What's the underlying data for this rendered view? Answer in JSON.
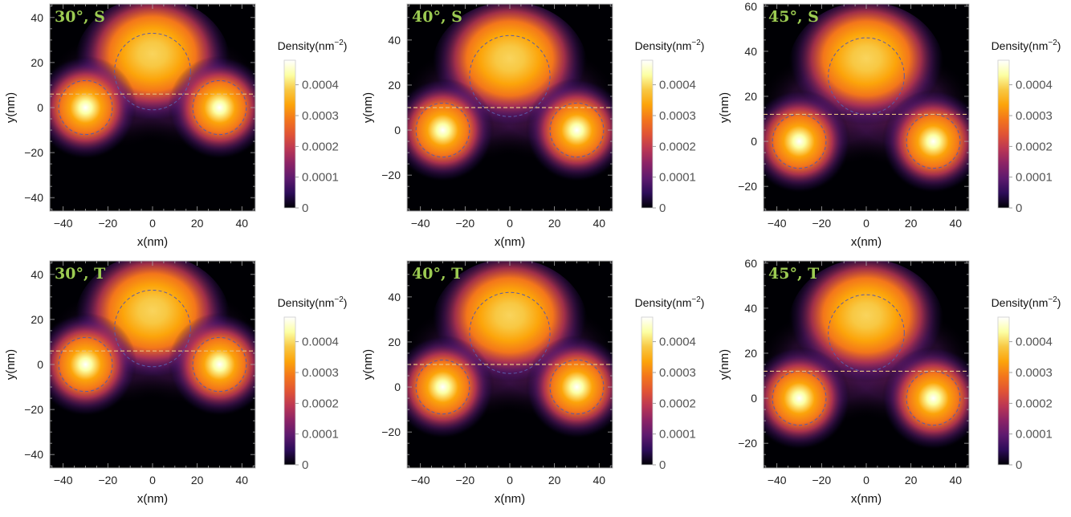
{
  "chart_data": [
    {
      "type": "heatmap",
      "label": "30°, S",
      "angle": 30,
      "xlabel": "x(nm)",
      "ylabel": "y(nm)",
      "xlim": [
        -46,
        46
      ],
      "ylim": [
        -46,
        46
      ],
      "xticks": [
        -40,
        -20,
        0,
        20,
        40
      ],
      "yticks": [
        -40,
        -20,
        0,
        20,
        40
      ],
      "dots": [
        {
          "x": -30,
          "y": 0,
          "r": 12
        },
        {
          "x": 30,
          "y": 0,
          "r": 12
        },
        {
          "x": 0,
          "y": 16,
          "r": 17
        }
      ],
      "hline_y": 6,
      "colorbar": {
        "title": "Density(nm",
        "exp": "−2",
        "close": ")",
        "ticks": [
          0,
          0.0001,
          0.0002,
          0.0003,
          0.0004
        ],
        "tick_labels": [
          "0",
          "0.0001",
          "0.0002",
          "0.0003",
          "0.0004"
        ],
        "max": 0.00048
      }
    },
    {
      "type": "heatmap",
      "label": "40°, S",
      "angle": 40,
      "xlabel": "x(nm)",
      "ylabel": "y(nm)",
      "xlim": [
        -46,
        46
      ],
      "ylim": [
        -36,
        56
      ],
      "xticks": [
        -40,
        -20,
        0,
        20,
        40
      ],
      "yticks": [
        -20,
        0,
        20,
        40
      ],
      "dots": [
        {
          "x": -30,
          "y": 0,
          "r": 12
        },
        {
          "x": 30,
          "y": 0,
          "r": 12
        },
        {
          "x": 0,
          "y": 24,
          "r": 18
        }
      ],
      "hline_y": 10,
      "colorbar": {
        "title": "Density(nm",
        "exp": "−2",
        "close": ")",
        "ticks": [
          0,
          0.0001,
          0.0002,
          0.0003,
          0.0004
        ],
        "tick_labels": [
          "0",
          "0.0001",
          "0.0002",
          "0.0003",
          "0.0004"
        ],
        "max": 0.00048
      }
    },
    {
      "type": "heatmap",
      "label": "45°, S",
      "angle": 45,
      "xlabel": "x(nm)",
      "ylabel": "y(nm)",
      "xlim": [
        -46,
        46
      ],
      "ylim": [
        -31,
        61
      ],
      "xticks": [
        -40,
        -20,
        0,
        20,
        40
      ],
      "yticks": [
        -20,
        0,
        20,
        40,
        60
      ],
      "dots": [
        {
          "x": -30,
          "y": 0,
          "r": 12
        },
        {
          "x": 30,
          "y": 0,
          "r": 12
        },
        {
          "x": 0,
          "y": 29,
          "r": 17
        }
      ],
      "hline_y": 12,
      "colorbar": {
        "title": "Density(nm",
        "exp": "−2",
        "close": ")",
        "ticks": [
          0,
          0.0001,
          0.0002,
          0.0003,
          0.0004
        ],
        "tick_labels": [
          "0",
          "0.0001",
          "0.0002",
          "0.0003",
          "0.0004"
        ],
        "max": 0.00048
      }
    },
    {
      "type": "heatmap",
      "label": "30°, T",
      "angle": 30,
      "xlabel": "x(nm)",
      "ylabel": "y(nm)",
      "xlim": [
        -46,
        46
      ],
      "ylim": [
        -46,
        46
      ],
      "xticks": [
        -40,
        -20,
        0,
        20,
        40
      ],
      "yticks": [
        -40,
        -20,
        0,
        20,
        40
      ],
      "dots": [
        {
          "x": -30,
          "y": 0,
          "r": 12
        },
        {
          "x": 30,
          "y": 0,
          "r": 12
        },
        {
          "x": 0,
          "y": 16,
          "r": 17
        }
      ],
      "hline_y": 6,
      "colorbar": {
        "title": "Density(nm",
        "exp": "−2",
        "close": ")",
        "ticks": [
          0,
          0.0001,
          0.0002,
          0.0003,
          0.0004
        ],
        "tick_labels": [
          "0",
          "0.0001",
          "0.0002",
          "0.0003",
          "0.0004"
        ],
        "max": 0.00048
      }
    },
    {
      "type": "heatmap",
      "label": "40°, T",
      "angle": 40,
      "xlabel": "x(nm)",
      "ylabel": "y(nm)",
      "xlim": [
        -46,
        46
      ],
      "ylim": [
        -36,
        56
      ],
      "xticks": [
        -40,
        -20,
        0,
        20,
        40
      ],
      "yticks": [
        -20,
        0,
        20,
        40
      ],
      "dots": [
        {
          "x": -30,
          "y": 0,
          "r": 12
        },
        {
          "x": 30,
          "y": 0,
          "r": 12
        },
        {
          "x": 0,
          "y": 24,
          "r": 18
        }
      ],
      "hline_y": 10,
      "colorbar": {
        "title": "Density(nm",
        "exp": "−2",
        "close": ")",
        "ticks": [
          0,
          0.0001,
          0.0002,
          0.0003,
          0.0004
        ],
        "tick_labels": [
          "0",
          "0.0001",
          "0.0002",
          "0.0003",
          "0.0004"
        ],
        "max": 0.00048
      }
    },
    {
      "type": "heatmap",
      "label": "45°, T",
      "angle": 45,
      "xlabel": "x(nm)",
      "ylabel": "y(nm)",
      "xlim": [
        -46,
        46
      ],
      "ylim": [
        -31,
        61
      ],
      "xticks": [
        -40,
        -20,
        0,
        20,
        40
      ],
      "yticks": [
        -20,
        0,
        20,
        40,
        60
      ],
      "dots": [
        {
          "x": -30,
          "y": 0,
          "r": 12
        },
        {
          "x": 30,
          "y": 0,
          "r": 12
        },
        {
          "x": 0,
          "y": 29,
          "r": 17
        }
      ],
      "hline_y": 12,
      "colorbar": {
        "title": "Density(nm",
        "exp": "−2",
        "close": ")",
        "ticks": [
          0,
          0.0001,
          0.0002,
          0.0003,
          0.0004
        ],
        "tick_labels": [
          "0",
          "0.0001",
          "0.0002",
          "0.0003",
          "0.0004"
        ],
        "max": 0.00048
      }
    }
  ],
  "colors": {
    "colormap": [
      "#000004",
      "#2c0c58",
      "#5d1a6e",
      "#8b2366",
      "#bb3754",
      "#e15434",
      "#f3761b",
      "#fca40a",
      "#f8c843",
      "#fcffa4",
      "#ffffff"
    ],
    "label_color": "#9ccb52",
    "circle_color": "#5a5aa8",
    "hline_color": "#e8c080",
    "frame_color": "#bbbbbb"
  }
}
